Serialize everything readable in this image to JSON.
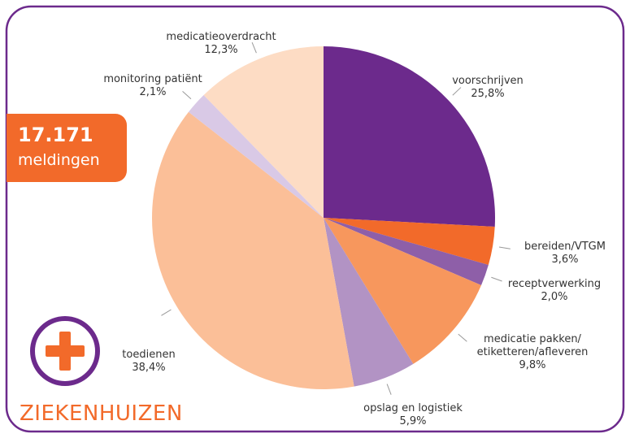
{
  "chart_data": {
    "type": "pie",
    "categories": [
      "voorschrijven",
      "bereiden/VTGM",
      "receptverwerking",
      "medicatie pakken/ etiketteren/afleveren",
      "opslag en logistiek",
      "toedienen",
      "monitoring patiënt",
      "medicatieoverdracht"
    ],
    "values": [
      25.8,
      3.6,
      2.0,
      9.8,
      5.9,
      38.4,
      2.1,
      12.3
    ],
    "value_labels": [
      "25,8%",
      "3,6%",
      "2,0%",
      "9,8%",
      "5,9%",
      "38,4%",
      "2,1%",
      "12,3%"
    ],
    "colors": [
      "#6c2a8c",
      "#f26a2a",
      "#8e5fa8",
      "#f7975d",
      "#b293c4",
      "#fbbf98",
      "#d9c9e6",
      "#fddcc4"
    ],
    "badge": {
      "count": "17.171",
      "label": "meldingen"
    },
    "footer": "ZIEKENHUIZEN"
  }
}
